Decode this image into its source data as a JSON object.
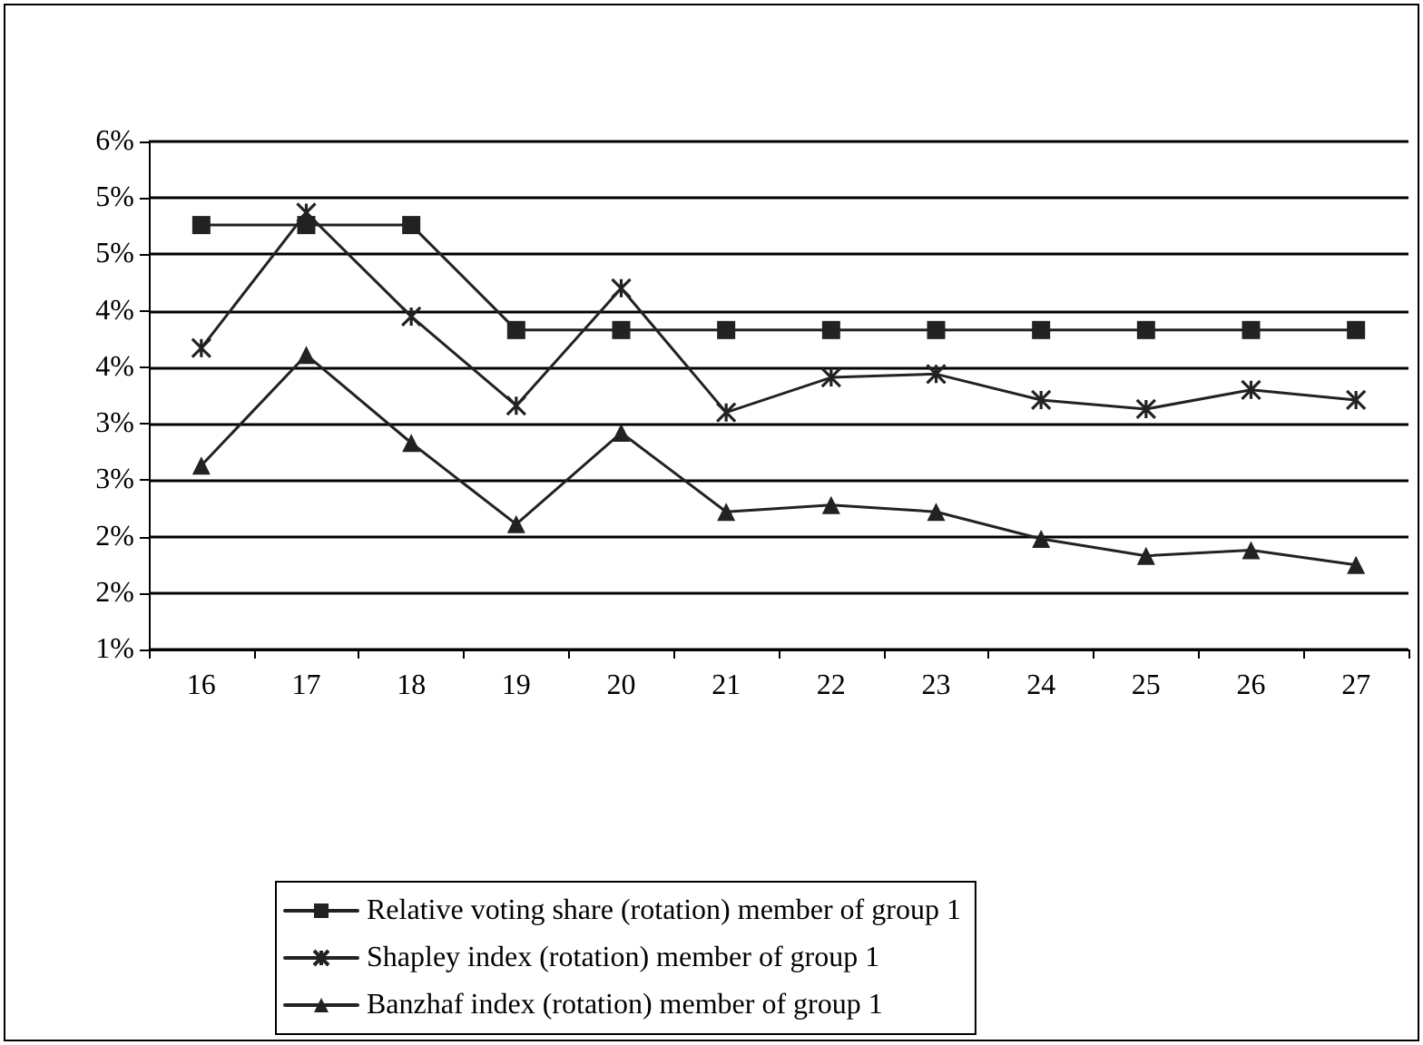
{
  "chart_data": {
    "type": "line",
    "categories": [
      "16",
      "17",
      "18",
      "19",
      "20",
      "21",
      "22",
      "23",
      "24",
      "25",
      "26",
      "27"
    ],
    "series": [
      {
        "name": "Relative voting share (rotation) member of group 1",
        "color": "#222222",
        "marker": "square",
        "values": [
          4.76,
          4.76,
          4.76,
          3.83,
          3.83,
          3.83,
          3.83,
          3.83,
          3.83,
          3.83,
          3.83,
          3.83
        ]
      },
      {
        "name": "Shapley index (rotation) member of group 1",
        "color": "#222222",
        "marker": "cross",
        "values": [
          3.67,
          4.87,
          3.95,
          3.16,
          4.2,
          3.1,
          3.41,
          3.44,
          3.21,
          3.13,
          3.3,
          3.21
        ]
      },
      {
        "name": "Banzhaf index (rotation) member of group 1",
        "color": "#222222",
        "marker": "triangle",
        "values": [
          2.63,
          3.61,
          2.83,
          2.11,
          2.92,
          2.22,
          2.28,
          2.22,
          1.98,
          1.83,
          1.88,
          1.75
        ]
      }
    ],
    "ylim": [
      1,
      5.5
    ],
    "yticks": [
      {
        "value": 1,
        "label": "1%"
      },
      {
        "value": 1.5,
        "label": "2%"
      },
      {
        "value": 2,
        "label": "2%"
      },
      {
        "value": 2.5,
        "label": "3%"
      },
      {
        "value": 3,
        "label": "3%"
      },
      {
        "value": 3.5,
        "label": "4%"
      },
      {
        "value": 4,
        "label": "4%"
      },
      {
        "value": 4.5,
        "label": "5%"
      },
      {
        "value": 5,
        "label": "5%"
      },
      {
        "value": 5.5,
        "label": "6%"
      }
    ],
    "grid": "y",
    "legend": "bottom",
    "line_style": "solid"
  }
}
